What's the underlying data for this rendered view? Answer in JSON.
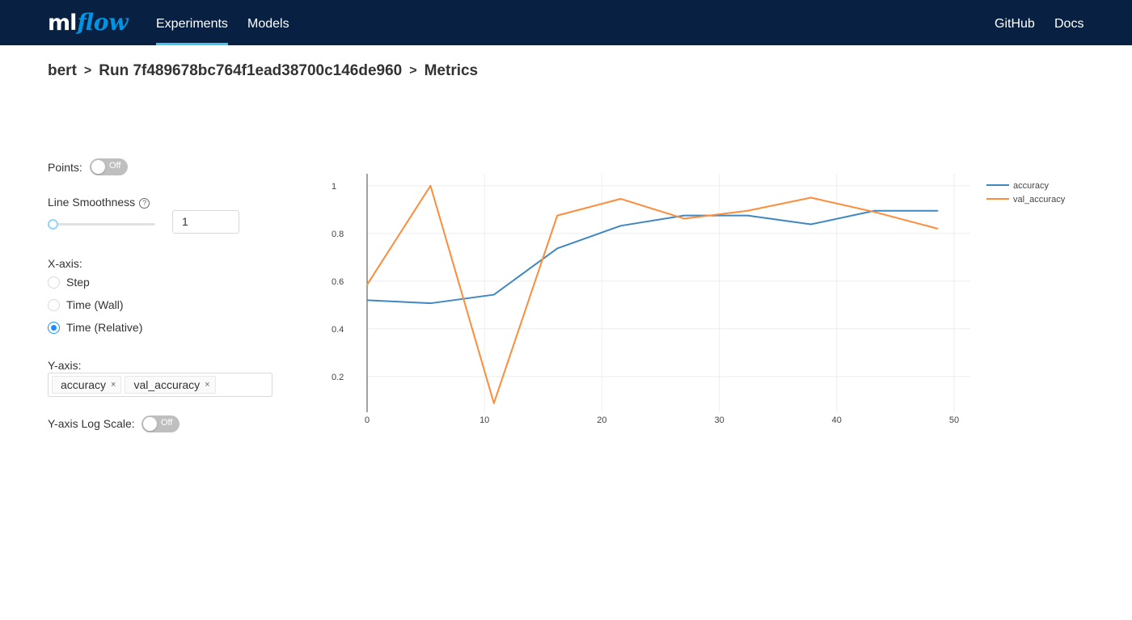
{
  "header": {
    "logo_ml": "ml",
    "logo_flow": "flow",
    "nav": [
      "Experiments",
      "Models"
    ],
    "links": [
      "GitHub",
      "Docs"
    ]
  },
  "breadcrumb": {
    "experiment": "bert",
    "run": "Run 7f489678bc764f1ead38700c146de960",
    "page": "Metrics",
    "separator": ">"
  },
  "controls": {
    "points_label": "Points:",
    "points_toggle": "Off",
    "smoothness_label": "Line Smoothness",
    "smoothness_value": "1",
    "xaxis_label": "X-axis:",
    "xaxis_options": [
      "Step",
      "Time (Wall)",
      "Time (Relative)"
    ],
    "xaxis_selected": "Time (Relative)",
    "yaxis_label": "Y-axis:",
    "yaxis_tags": [
      "accuracy",
      "val_accuracy"
    ],
    "logscale_label": "Y-axis Log Scale:",
    "logscale_toggle": "Off"
  },
  "colors": {
    "header_bg": "#082142",
    "accent": "#0194e2",
    "series_accuracy": "#3f87c0",
    "series_val_accuracy": "#fd8c3b"
  },
  "chart_data": {
    "type": "line",
    "xlim": [
      0,
      50
    ],
    "ylim": [
      0.05,
      1.05
    ],
    "xticks": [
      0,
      10,
      20,
      30,
      40,
      50
    ],
    "yticks": [
      0.2,
      0.4,
      0.6,
      0.8,
      1
    ],
    "ytick_labels": [
      "0.2",
      "0.4",
      "0.6",
      "0.8",
      "1"
    ],
    "grid": true,
    "legend": "top-right",
    "series": [
      {
        "name": "accuracy",
        "color": "#3f87c0",
        "x": [
          0,
          5.4,
          10.8,
          16.2,
          21.6,
          27,
          32.4,
          37.8,
          43.2,
          48.6
        ],
        "values": [
          0.52,
          0.507,
          0.543,
          0.737,
          0.832,
          0.875,
          0.875,
          0.838,
          0.895,
          0.895
        ]
      },
      {
        "name": "val_accuracy",
        "color": "#fd8c3b",
        "x": [
          0,
          5.4,
          10.8,
          16.2,
          21.6,
          27,
          32.4,
          37.8,
          43.2,
          48.6
        ],
        "values": [
          0.585,
          1.0,
          0.088,
          0.875,
          0.945,
          0.862,
          0.895,
          0.95,
          0.89,
          0.82
        ]
      }
    ]
  }
}
